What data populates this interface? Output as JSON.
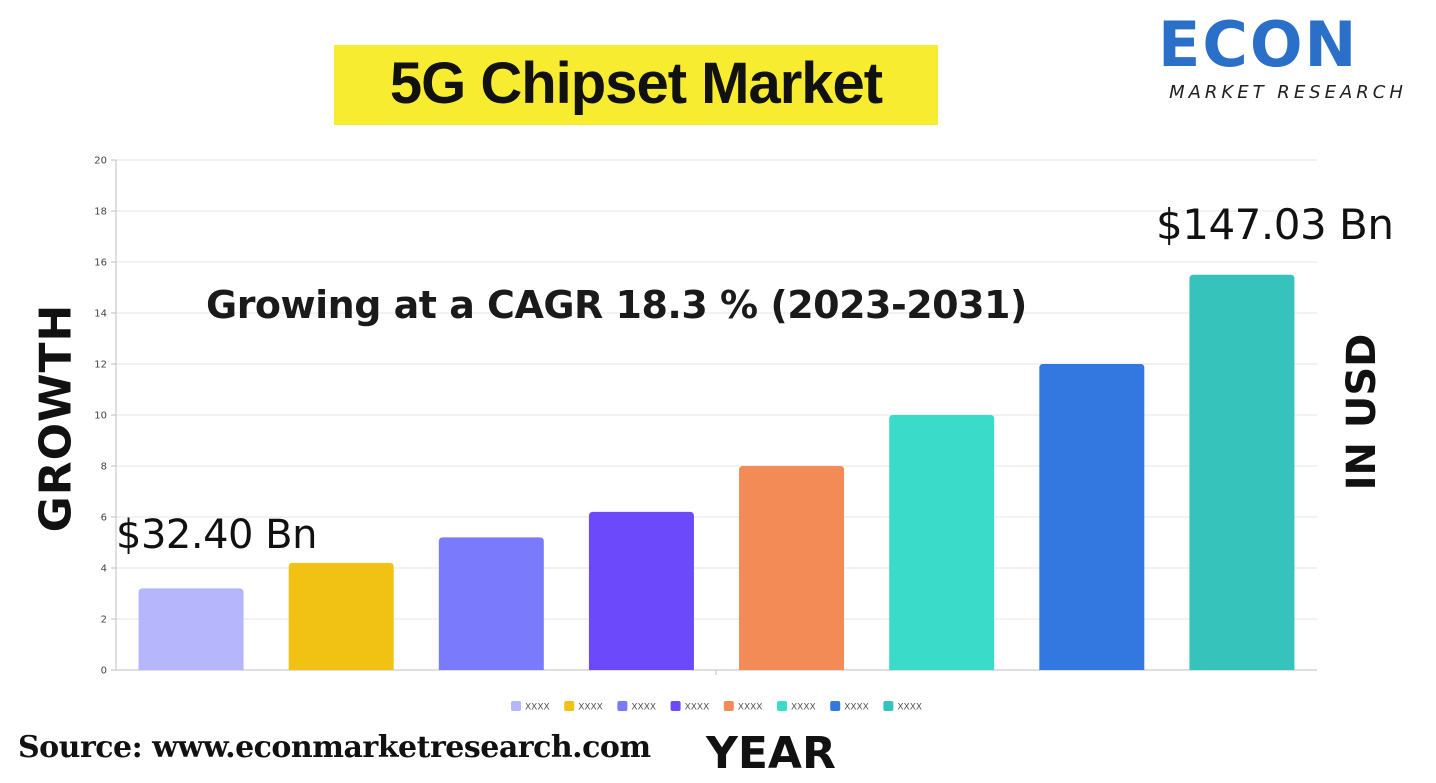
{
  "header": {
    "title": "5G Chipset Market",
    "logo_word": "ECON",
    "logo_sub": "MARKET RESEARCH",
    "source": "Source: www.econmarketresearch.com"
  },
  "annotations": {
    "cagr": "Growing at a CAGR 18.3 % (2023-2031)",
    "start_value": "$32.40 Bn",
    "end_value": "$147.03 Bn",
    "right_label": "IN USD"
  },
  "colors": {
    "title_highlight": "#f7ec2f",
    "logo_blue": "#2a70c8",
    "grid": "#e6e6e6",
    "axis": "#bfbfbf"
  },
  "chart_data": {
    "type": "bar",
    "title": "5G Chipset Market",
    "xlabel": "YEAR",
    "ylabel": "GROWTH",
    "ylim": [
      0,
      20
    ],
    "yticks": [
      0,
      2,
      4,
      6,
      8,
      10,
      12,
      14,
      16,
      18,
      20
    ],
    "grid": true,
    "legend_position": "bottom",
    "categories": [
      "XXXX",
      "XXXX",
      "XXXX",
      "XXXX",
      "XXXX",
      "XXXX",
      "XXXX",
      "XXXX"
    ],
    "values": [
      3.2,
      4.2,
      5.2,
      6.2,
      8.0,
      10.0,
      12.0,
      15.5
    ],
    "bar_colors": [
      "#b5b6fb",
      "#f1c114",
      "#7a7afd",
      "#6c4afb",
      "#f28b55",
      "#3adbc8",
      "#3378e0",
      "#35c3bc"
    ],
    "legend": [
      "XXXX",
      "XXXX",
      "XXXX",
      "XXXX",
      "XXXX",
      "XXXX",
      "XXXX",
      "XXXX"
    ]
  }
}
